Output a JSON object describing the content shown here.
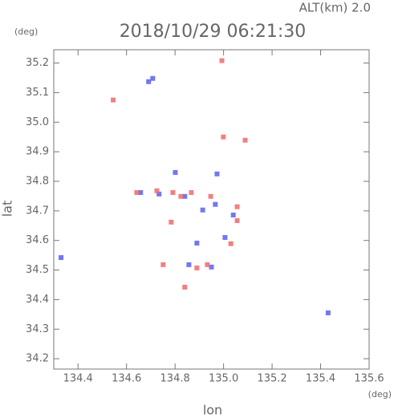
{
  "chart_data": {
    "type": "scatter",
    "title": "2018/10/29 06:21:30",
    "subtitle": "ALT(km) 2.0",
    "x_label": "lon",
    "y_label": "lat",
    "x_unit": "(deg)",
    "y_unit": "(deg)",
    "xlim": [
      134.3,
      135.6
    ],
    "ylim": [
      34.165,
      35.245
    ],
    "xticks": [
      {
        "value": 134.4,
        "label": "134.4"
      },
      {
        "value": 134.6,
        "label": "134.6"
      },
      {
        "value": 134.8,
        "label": "134.8"
      },
      {
        "value": 135.0,
        "label": "135.0"
      },
      {
        "value": 135.2,
        "label": "135.2"
      },
      {
        "value": 135.4,
        "label": "135.4"
      },
      {
        "value": 135.6,
        "label": "135.6"
      }
    ],
    "yticks": [
      {
        "value": 34.2,
        "label": "34.2"
      },
      34.3,
      34.4,
      34.5,
      34.6,
      34.7,
      34.8,
      34.9,
      {
        "value": 35.0,
        "label": "35.0"
      },
      35.1,
      {
        "value": 35.2,
        "label": "35.2"
      }
    ],
    "series": [
      {
        "color": "#5a5ff0",
        "x": [
          134.691,
          134.708,
          134.33,
          134.801,
          134.973,
          134.966,
          134.89,
          134.95,
          135.431,
          135.04,
          134.658,
          134.84,
          134.914,
          135.006,
          134.857,
          134.734
        ],
        "y": [
          35.137,
          35.148,
          34.542,
          34.83,
          34.825,
          34.722,
          34.591,
          34.51,
          34.355,
          34.686,
          34.762,
          34.749,
          34.703,
          34.61,
          34.518,
          34.757
        ]
      },
      {
        "color": "#f06a6a",
        "x": [
          134.993,
          134.545,
          134.999,
          135.089,
          134.642,
          134.725,
          134.791,
          134.867,
          134.784,
          135.03,
          135.056,
          134.89,
          134.933,
          134.84,
          134.751,
          134.824,
          134.947,
          135.056
        ],
        "y": [
          35.208,
          35.075,
          34.95,
          34.939,
          34.762,
          34.768,
          34.762,
          34.762,
          34.662,
          34.589,
          34.667,
          34.507,
          34.518,
          34.442,
          34.518,
          34.749,
          34.749,
          34.714
        ]
      }
    ]
  }
}
